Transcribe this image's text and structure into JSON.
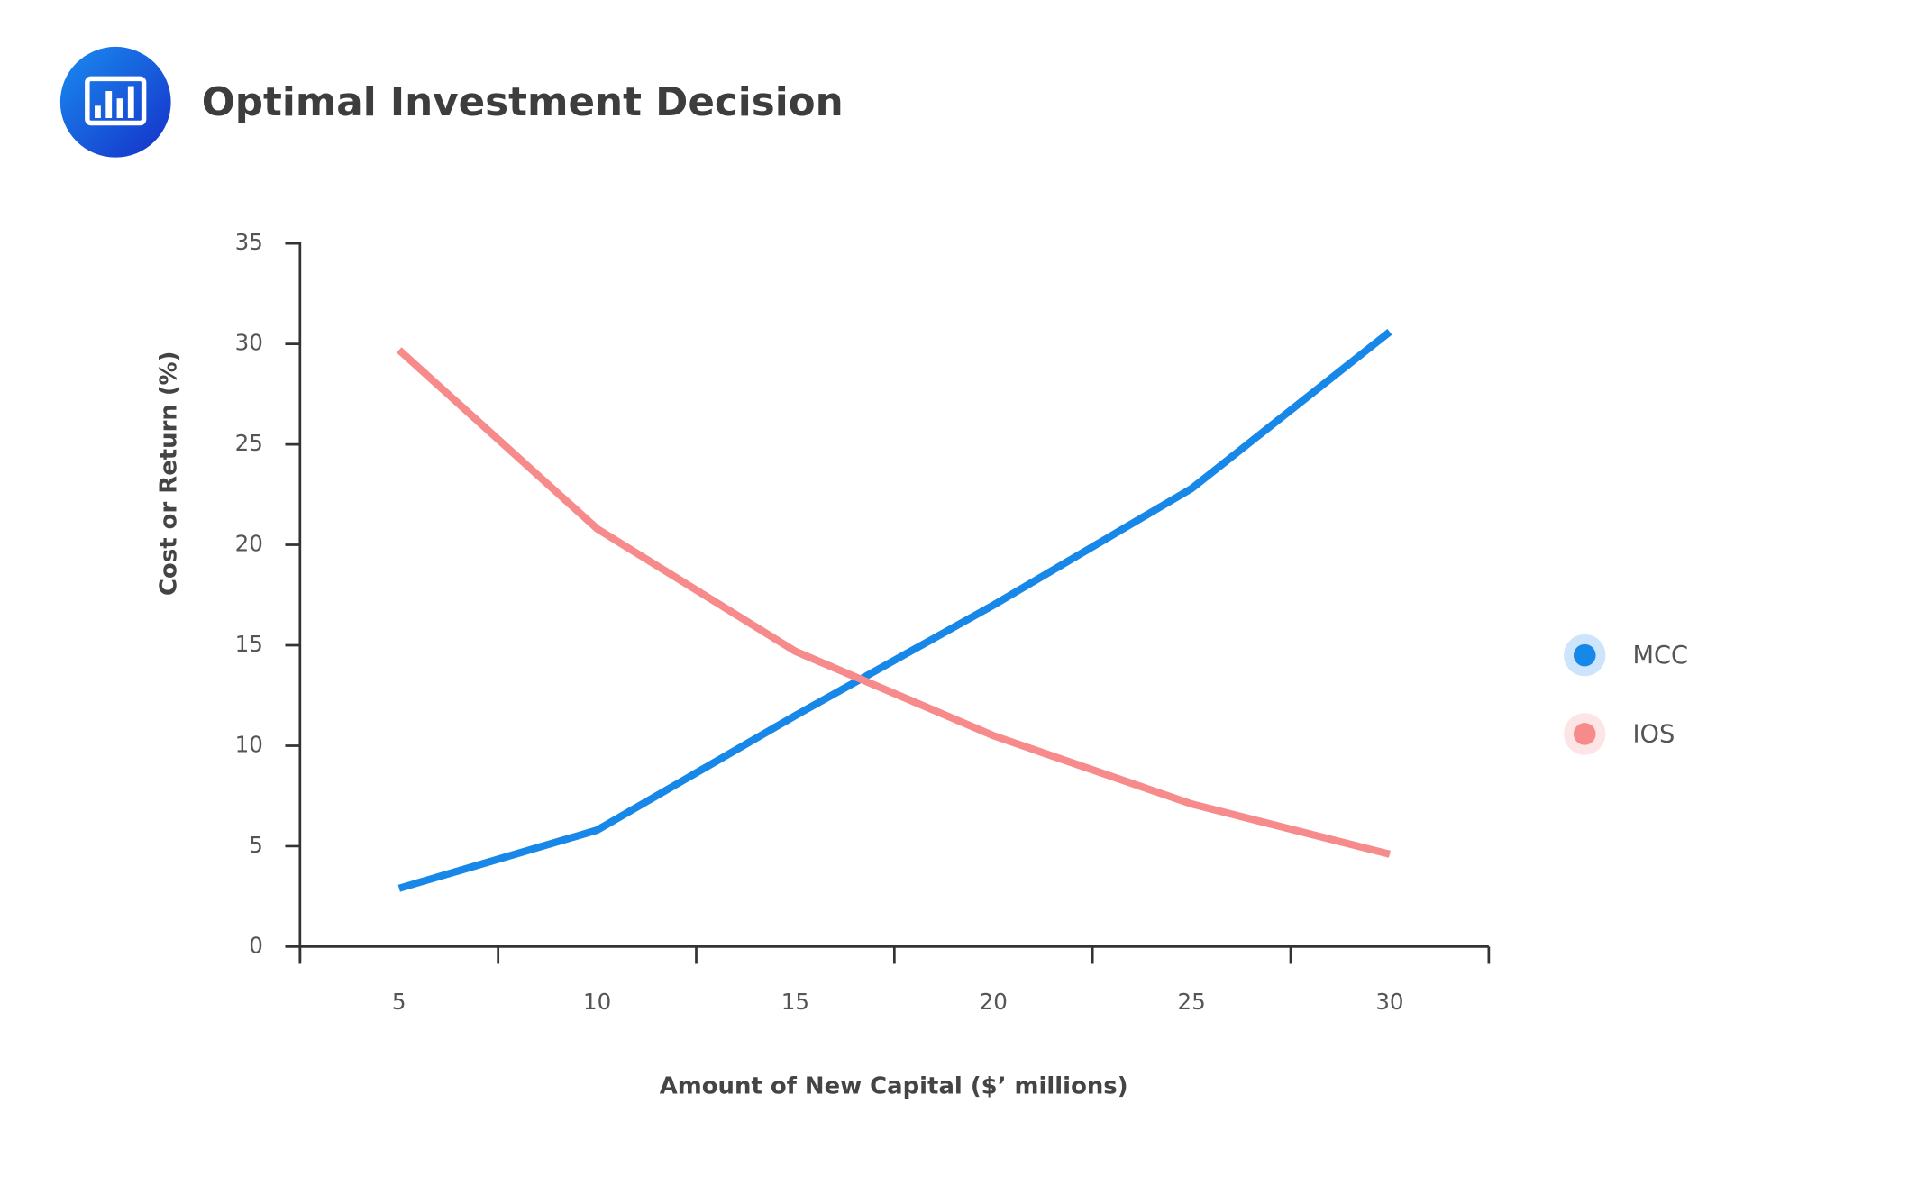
{
  "chart_data": {
    "type": "line",
    "title": "Optimal Investment Decision",
    "x_label": "Amount of New Capital ($’ millions)",
    "y_label": "Cost or Return (%)",
    "categories": [
      "5",
      "10",
      "15",
      "20",
      "25",
      "30"
    ],
    "series": [
      {
        "name": "MCC",
        "color": "#1787e8",
        "values": [
          2.9,
          5.8,
          11.5,
          17,
          22.8,
          30.6
        ]
      },
      {
        "name": "IOS",
        "color": "#f78a8a",
        "values": [
          29.7,
          20.8,
          14.7,
          10.5,
          7.1,
          4.6
        ]
      }
    ],
    "ylim": [
      0,
      35
    ],
    "yticks": [
      0,
      5,
      10,
      15,
      20,
      25,
      30,
      35
    ],
    "grid": false,
    "legend": "right"
  }
}
